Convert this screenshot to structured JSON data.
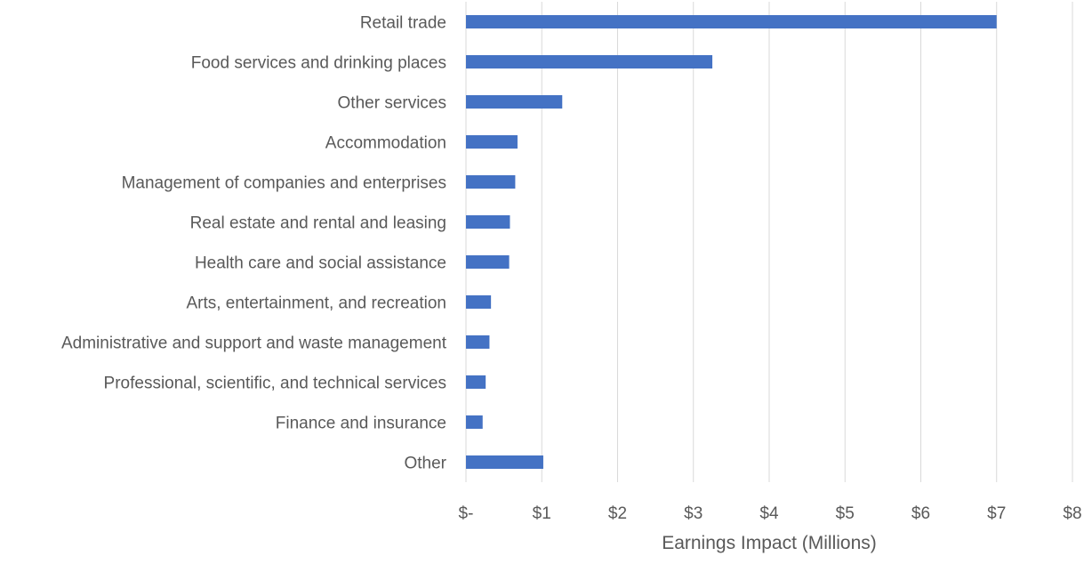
{
  "chart_data": {
    "type": "bar",
    "orientation": "horizontal",
    "title": "",
    "xlabel": "Earnings Impact (Millions)",
    "ylabel": "",
    "xlim": [
      0,
      8
    ],
    "grid": true,
    "bar_color": "#4472C4",
    "categories": [
      "Retail trade",
      "Food services and drinking places",
      "Other services",
      "Accommodation",
      "Management of companies and enterprises",
      "Real estate and rental and leasing",
      "Health care and social assistance",
      "Arts, entertainment, and recreation",
      "Administrative and support and waste management",
      "Professional, scientific, and technical services",
      "Finance and insurance",
      "Other"
    ],
    "values": [
      7.0,
      3.25,
      1.27,
      0.68,
      0.65,
      0.58,
      0.57,
      0.33,
      0.31,
      0.26,
      0.22,
      1.02
    ],
    "x_ticks": [
      0,
      1,
      2,
      3,
      4,
      5,
      6,
      7,
      8
    ],
    "x_tick_labels": [
      "$-",
      "$1",
      "$2",
      "$3",
      "$4",
      "$5",
      "$6",
      "$7",
      "$8"
    ]
  }
}
